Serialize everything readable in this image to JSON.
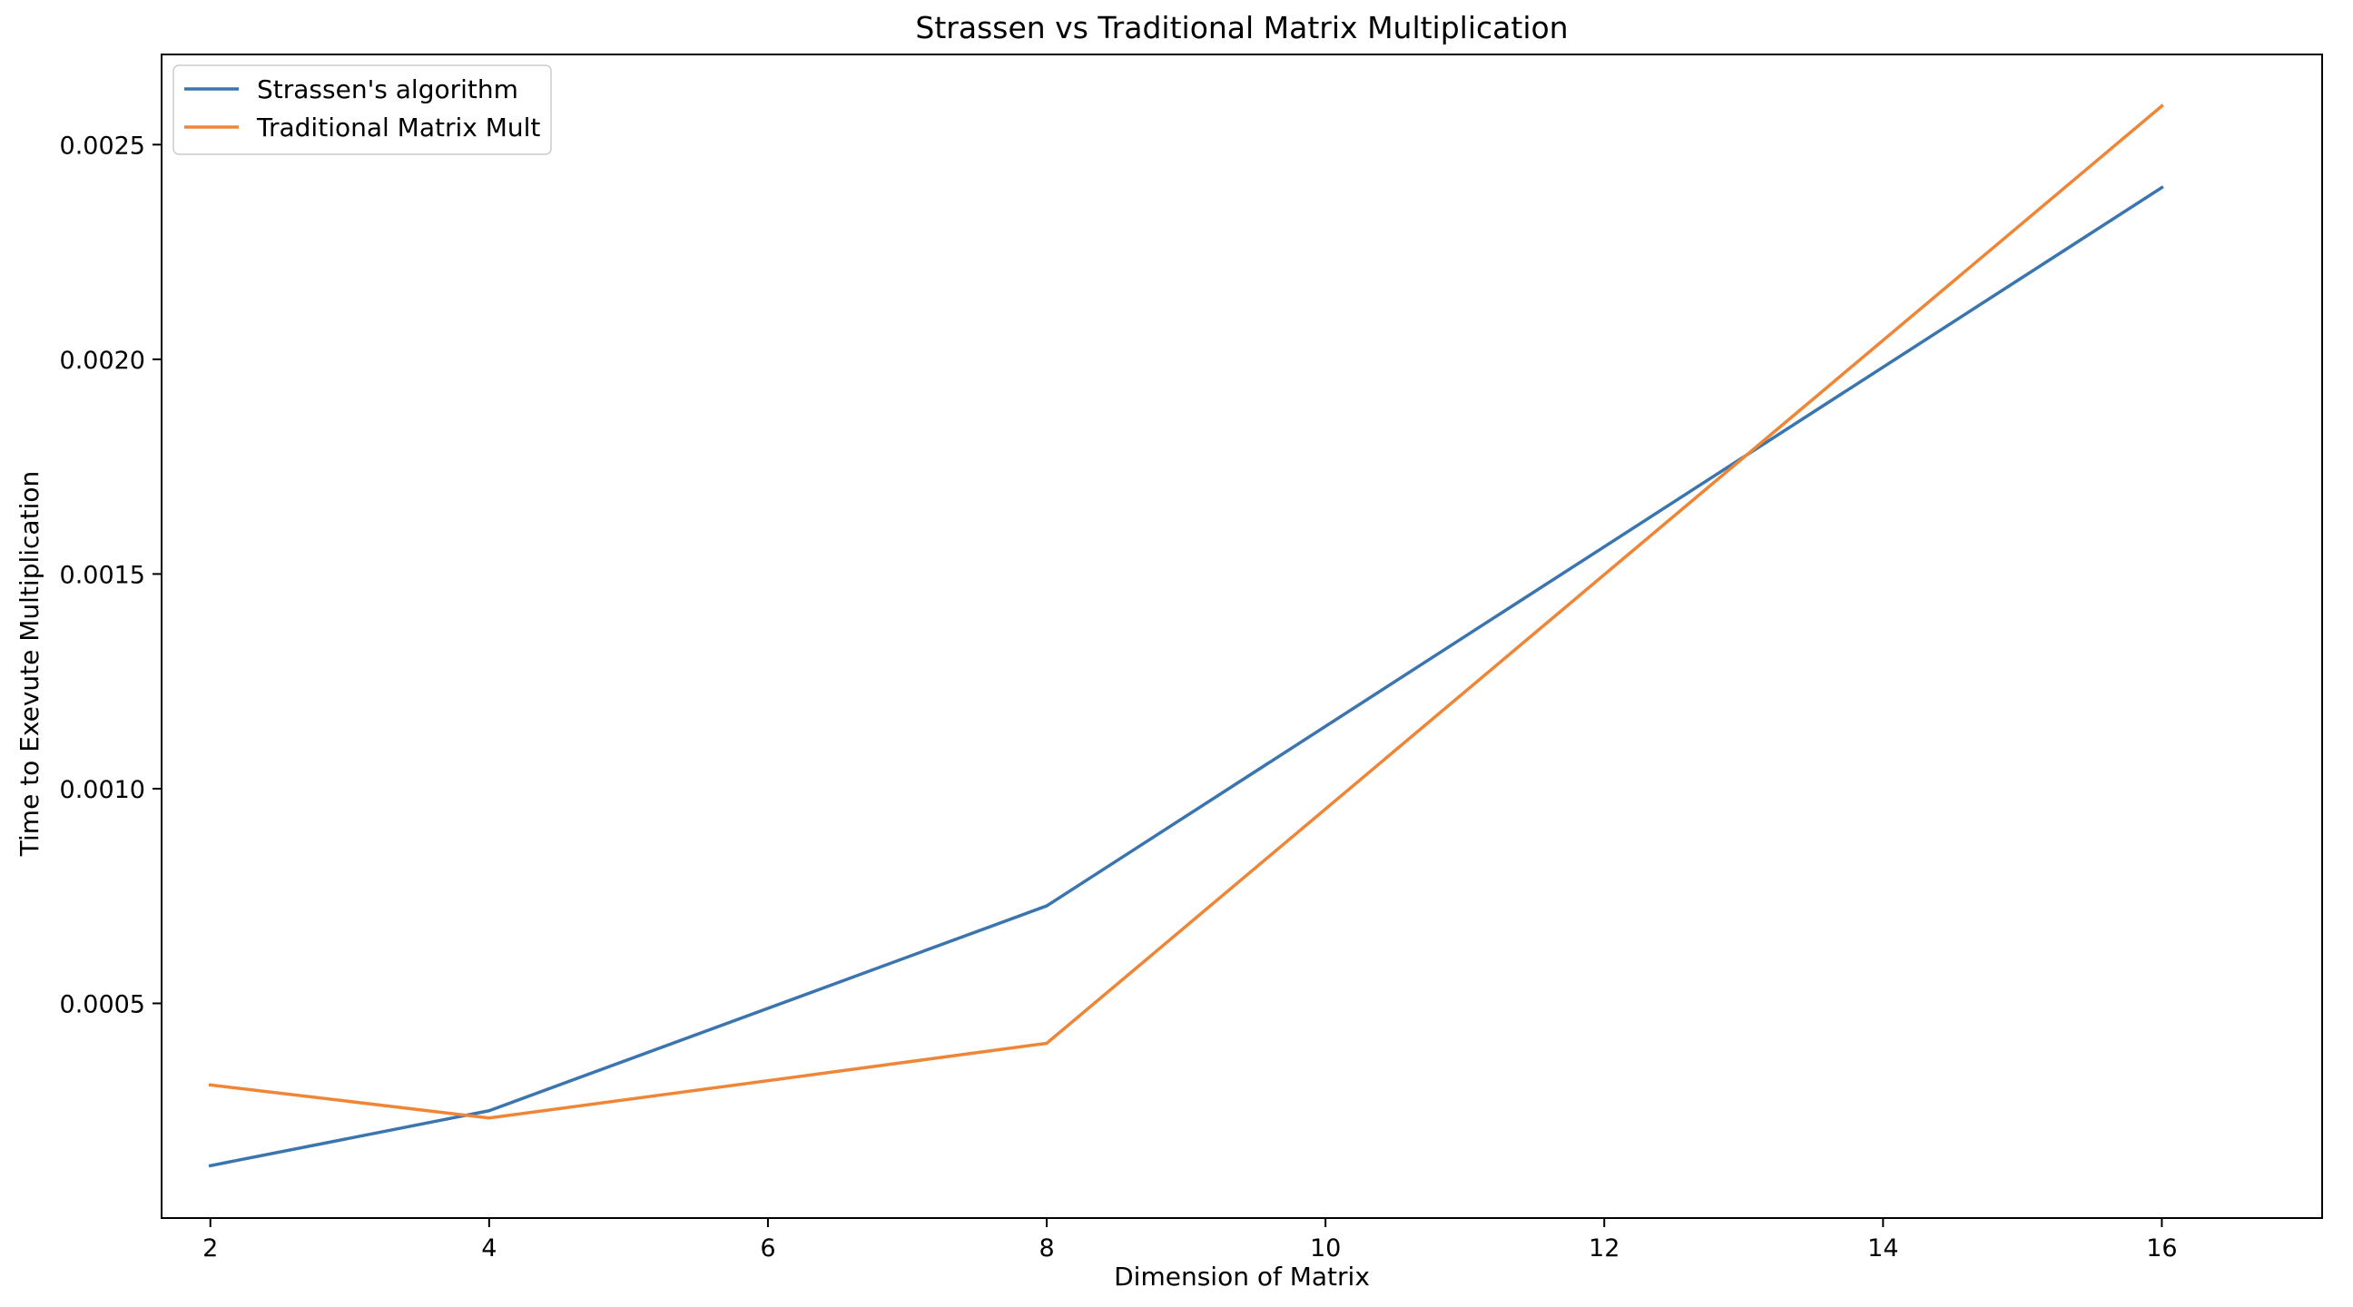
{
  "chart_data": {
    "type": "line",
    "title": "Strassen vs Traditional Matrix Multiplication",
    "xlabel": "Dimension of Matrix",
    "ylabel": "Time to Exevute Multiplication",
    "xlim": [
      1.65,
      17.15
    ],
    "ylim": [
      0.0,
      0.00271
    ],
    "xticks": [
      2,
      4,
      6,
      8,
      10,
      12,
      14,
      16
    ],
    "xtick_labels": [
      "2",
      "4",
      "6",
      "8",
      "10",
      "12",
      "14",
      "16"
    ],
    "yticks": [
      0.0005,
      0.001,
      0.0015,
      0.002,
      0.0025
    ],
    "ytick_labels": [
      "0.0005",
      "0.0010",
      "0.0015",
      "0.0020",
      "0.0025"
    ],
    "grid": false,
    "legend_position": "top-left",
    "series": [
      {
        "name": "Strassen's algorithm",
        "color": "#3a75af",
        "x": [
          2,
          4,
          8,
          16
        ],
        "y": [
          0.000122,
          0.00025,
          0.000727,
          0.0024
        ]
      },
      {
        "name": "Traditional Matrix Mult",
        "color": "#ef8536",
        "x": [
          2,
          4,
          8,
          16
        ],
        "y": [
          0.00031,
          0.000233,
          0.000407,
          0.00259
        ]
      }
    ]
  }
}
